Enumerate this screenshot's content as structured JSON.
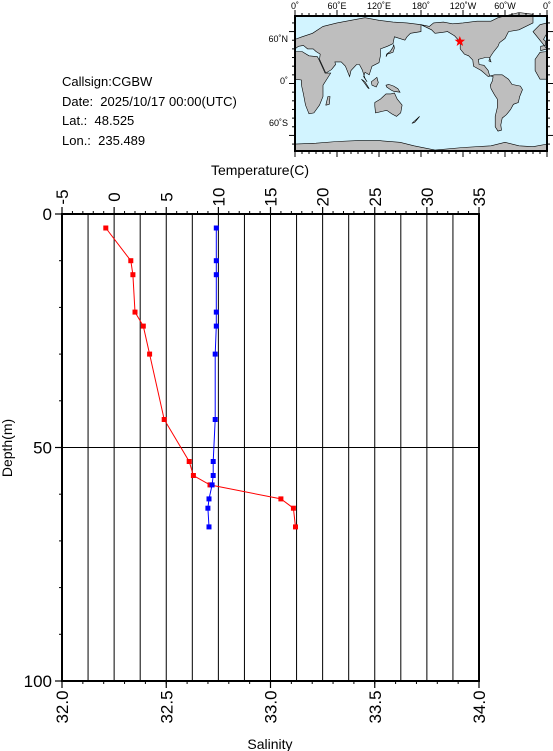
{
  "info": {
    "callsign": "Callsign:CGBW",
    "date": "Date:  2025/10/17 00:00(UTC)",
    "lat": "Lat.:  48.525",
    "lon": "Lon.:  235.489"
  },
  "map": {
    "top_ticks": [
      "0˚",
      "60˚E",
      "120˚E",
      "180˚",
      "120˚W",
      "60˚W",
      "0˚"
    ],
    "lat_ticks": [
      "60˚N",
      "0˚",
      "60˚S"
    ],
    "station": {
      "lon": 235.489,
      "lat": 48.525
    },
    "colors": {
      "ocean": "#d2f4ff",
      "land": "#bebebe",
      "marker": "#ff0000"
    }
  },
  "chart_data": {
    "type": "line",
    "x_top": {
      "label": "Temperature(C)",
      "range": [
        -5,
        35
      ],
      "ticks": [
        "-5",
        "0",
        "5",
        "10",
        "15",
        "20",
        "25",
        "30",
        "35"
      ]
    },
    "x_bottom": {
      "label": "Salinity",
      "range": [
        32.0,
        34.0
      ],
      "ticks": [
        "32.0",
        "32.5",
        "33.0",
        "33.5",
        "34.0"
      ]
    },
    "y": {
      "label": "Depth(m)",
      "range": [
        0,
        100
      ],
      "inverted": true,
      "ticks": [
        "0",
        "50",
        "100"
      ]
    },
    "grid": true,
    "series": [
      {
        "color": "#ff0000",
        "axis": "bottom",
        "points": [
          [
            32.21,
            3
          ],
          [
            32.33,
            10
          ],
          [
            32.34,
            13
          ],
          [
            32.35,
            21
          ],
          [
            32.39,
            24
          ],
          [
            32.42,
            30
          ],
          [
            32.49,
            44
          ],
          [
            32.61,
            53
          ],
          [
            32.63,
            56
          ],
          [
            32.71,
            58
          ],
          [
            33.05,
            61
          ],
          [
            33.11,
            63
          ],
          [
            33.12,
            67
          ]
        ]
      },
      {
        "color": "#0000ff",
        "axis": "top",
        "points": [
          [
            9.8,
            3
          ],
          [
            9.8,
            10
          ],
          [
            9.8,
            13
          ],
          [
            9.8,
            21
          ],
          [
            9.8,
            24
          ],
          [
            9.7,
            30
          ],
          [
            9.7,
            44
          ],
          [
            9.5,
            53
          ],
          [
            9.5,
            56
          ],
          [
            9.4,
            58
          ],
          [
            9.1,
            61
          ],
          [
            9.0,
            63
          ],
          [
            9.1,
            67
          ]
        ]
      }
    ]
  }
}
